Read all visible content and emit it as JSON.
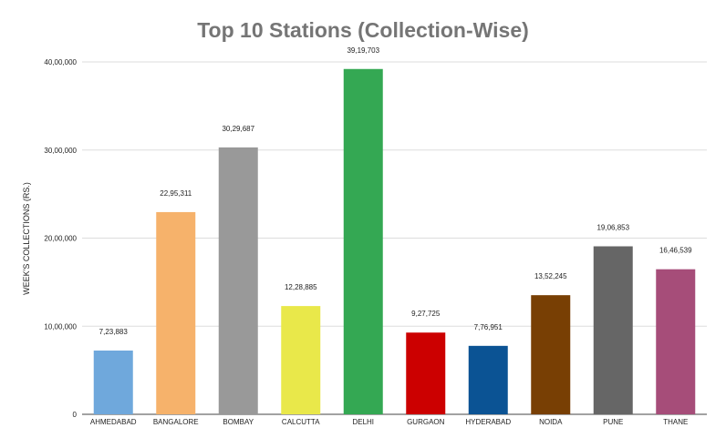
{
  "chart_data": {
    "type": "bar",
    "title": "Top 10 Stations (Collection-Wise)",
    "xlabel": "",
    "ylabel": "WEEK'S COLLECTIONS (RS.)",
    "ylim": [
      0,
      4000000
    ],
    "yticks": [
      0,
      1000000,
      2000000,
      3000000,
      4000000
    ],
    "ytick_labels": [
      "0",
      "10,00,000",
      "20,00,000",
      "30,00,000",
      "40,00,000"
    ],
    "grid": true,
    "categories": [
      "AHMEDABAD",
      "BANGALORE",
      "BOMBAY",
      "CALCUTTA",
      "DELHI",
      "GURGAON",
      "HYDERABAD",
      "NOIDA",
      "PUNE",
      "THANE"
    ],
    "values": [
      723883,
      2295311,
      3029687,
      1228885,
      3919703,
      927725,
      776951,
      1352245,
      1906853,
      1646539
    ],
    "value_labels": [
      "7,23,883",
      "22,95,311",
      "30,29,687",
      "12,28,885",
      "39,19,703",
      "9,27,725",
      "7,76,951",
      "13,52,245",
      "19,06,853",
      "16,46,539"
    ],
    "colors": [
      "#6fa8dc",
      "#f6b26b",
      "#999999",
      "#e9e84a",
      "#34a853",
      "#cc0000",
      "#0b5394",
      "#783f04",
      "#666666",
      "#a64d79"
    ]
  }
}
